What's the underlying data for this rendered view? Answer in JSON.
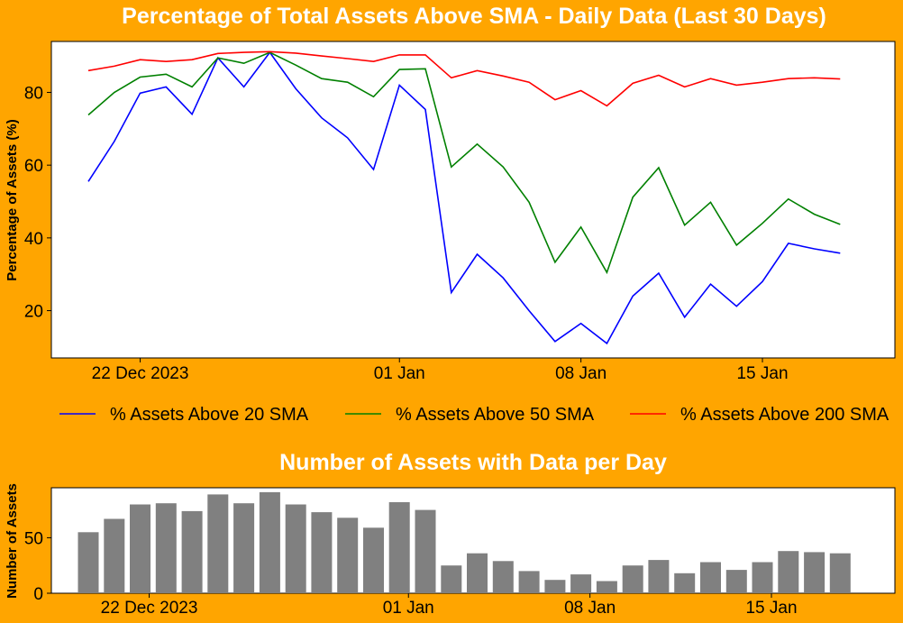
{
  "chart_data": [
    {
      "type": "line",
      "title": "Percentage of Total Assets Above SMA - Daily Data (Last 30 Days)",
      "xlabel": "",
      "ylabel": "Percentage of Assets (%)",
      "x": [
        "2023-12-20",
        "2023-12-21",
        "2023-12-22",
        "2023-12-23",
        "2023-12-24",
        "2023-12-25",
        "2023-12-26",
        "2023-12-27",
        "2023-12-28",
        "2023-12-29",
        "2023-12-30",
        "2023-12-31",
        "2024-01-01",
        "2024-01-02",
        "2024-01-03",
        "2024-01-04",
        "2024-01-05",
        "2024-01-06",
        "2024-01-07",
        "2024-01-08",
        "2024-01-09",
        "2024-01-10",
        "2024-01-11",
        "2024-01-12",
        "2024-01-13",
        "2024-01-14",
        "2024-01-15",
        "2024-01-16",
        "2024-01-17",
        "2024-01-18"
      ],
      "x_ticks": [
        "22 Dec 2023",
        "01 Jan",
        "08 Jan",
        "15 Jan"
      ],
      "y_ticks": [
        20,
        40,
        60,
        80
      ],
      "ylim": [
        7,
        94
      ],
      "legend_position": "below",
      "series": [
        {
          "name": "% Assets Above 20 SMA",
          "color": "#0000FF",
          "values": [
            55.5,
            66.5,
            79.8,
            81.5,
            74,
            89.5,
            81.5,
            91,
            81,
            73,
            67.5,
            58.8,
            82,
            75.3,
            25,
            35.5,
            29,
            20,
            11.5,
            16.5,
            11,
            24,
            30.3,
            18.2,
            27.3,
            21.2,
            28,
            38.5,
            37,
            35.8
          ]
        },
        {
          "name": "% Assets Above 50 SMA",
          "color": "#008000",
          "values": [
            73.8,
            80,
            84.2,
            85,
            81.5,
            89.5,
            88,
            91,
            87.5,
            83.8,
            82.8,
            78.8,
            86.3,
            86.5,
            59.5,
            65.8,
            59.5,
            49.8,
            33.3,
            43,
            30.5,
            51.2,
            59.3,
            43.5,
            49.8,
            38,
            44,
            50.7,
            46.5,
            43.7
          ]
        },
        {
          "name": "% Assets Above 200 SMA",
          "color": "#FF0000",
          "values": [
            86,
            87.2,
            89,
            88.5,
            89,
            90.7,
            91,
            91.2,
            90.8,
            90,
            89.3,
            88.5,
            90.3,
            90.3,
            84,
            86,
            84.5,
            82.8,
            78,
            80.5,
            76.3,
            82.5,
            84.7,
            81.5,
            83.8,
            82,
            82.8,
            83.8,
            84,
            83.7
          ]
        }
      ]
    },
    {
      "type": "bar",
      "title": "Number of Assets with Data per Day",
      "xlabel": "",
      "ylabel": "Number of Assets",
      "x_ticks": [
        "22 Dec 2023",
        "01 Jan",
        "08 Jan",
        "15 Jan"
      ],
      "y_ticks": [
        0,
        50
      ],
      "ylim": [
        0,
        95
      ],
      "bar_color": "#808080",
      "values": [
        55,
        67,
        80,
        81,
        74,
        89,
        81,
        91,
        80,
        73,
        68,
        59,
        82,
        75,
        25,
        36,
        29,
        20,
        12,
        17,
        11,
        25,
        30,
        18,
        28,
        21,
        28,
        38,
        37,
        36
      ]
    }
  ]
}
